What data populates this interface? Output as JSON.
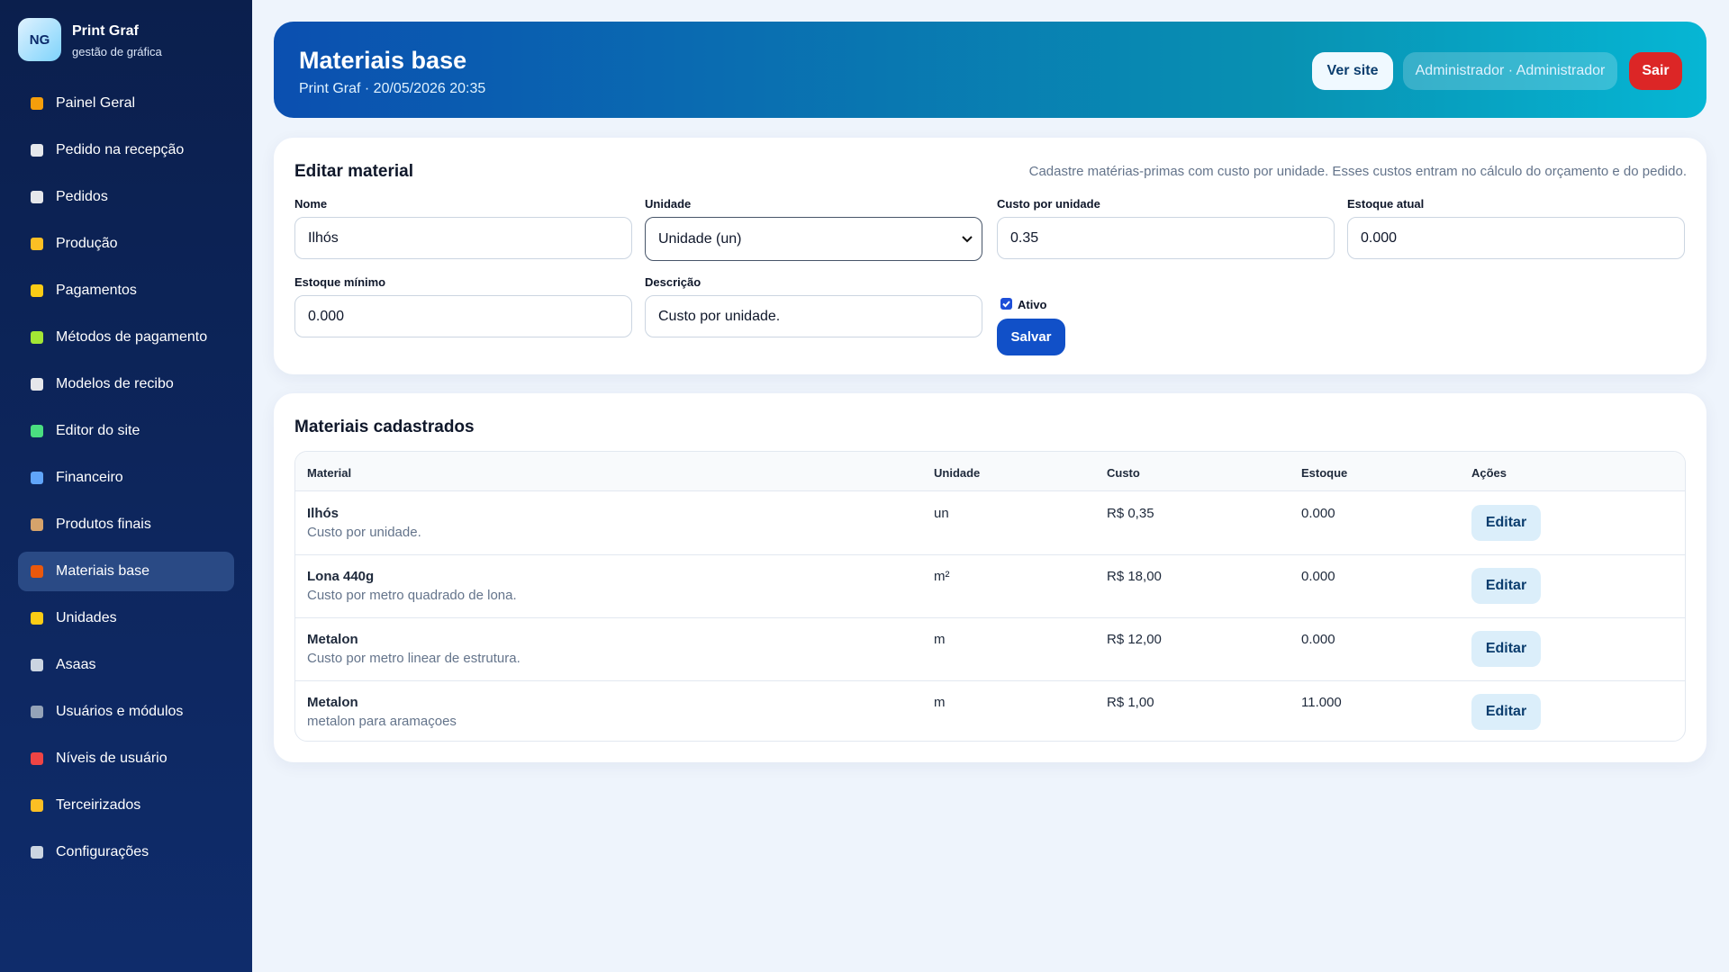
{
  "sidebar": {
    "logo": "NG",
    "brand": "Print Graf",
    "tagline": "gestão de gráfica",
    "nav": [
      "Painel Geral",
      "Pedido na recepção",
      "Pedidos",
      "Produção",
      "Pagamentos",
      "Métodos de pagamento",
      "Modelos de recibo",
      "Editor do site",
      "Financeiro",
      "Produtos finais",
      "Materiais base",
      "Unidades",
      "Asaas",
      "Usuários e módulos",
      "Níveis de usuário",
      "Terceirizados",
      "Configurações"
    ]
  },
  "header": {
    "title": "Materiais base",
    "subtitle": "Print Graf · 20/05/2026 20:35",
    "buttons": [
      "Ver site",
      "Administrador · Administrador",
      "Sair"
    ]
  },
  "form": {
    "title": "Editar material",
    "hint": "Cadastre matérias-primas com custo por unidade. Esses custos entram no cálculo do orçamento e do pedido.",
    "fields": [
      {
        "label": "Nome",
        "value": "Ilhós"
      },
      {
        "label": "Unidade",
        "value": "Unidade (un)"
      },
      {
        "label": "Custo por unidade",
        "value": "0.35"
      },
      {
        "label": "Estoque atual",
        "value": "0.000"
      },
      {
        "label": "Estoque mínimo",
        "value": "0.000"
      },
      {
        "label": "Descrição",
        "value": "Custo por unidade."
      }
    ],
    "checkbox": "Ativo",
    "submit": "Salvar"
  },
  "table": {
    "title": "Materiais cadastrados",
    "headers": [
      "Material",
      "Unidade",
      "Custo",
      "Estoque",
      "Ações"
    ],
    "rows": [
      {
        "name": "Ilhós",
        "description": "Custo por unidade.",
        "unit": "un",
        "cost": "R$ 0,35",
        "stock": "0.000",
        "action": "Editar"
      },
      {
        "name": "Lona 440g",
        "description": "Custo por metro quadrado de lona.",
        "unit": "m²",
        "cost": "R$ 18,00",
        "stock": "0.000",
        "action": "Editar"
      },
      {
        "name": "Metalon",
        "description": "Custo por metro linear de estrutura.",
        "unit": "m",
        "cost": "R$ 12,00",
        "stock": "0.000",
        "action": "Editar"
      },
      {
        "name": "Metalon",
        "description": "metalon para aramaçoes",
        "unit": "m",
        "cost": "R$ 1,00",
        "stock": "11.000",
        "action": "Editar"
      }
    ]
  }
}
